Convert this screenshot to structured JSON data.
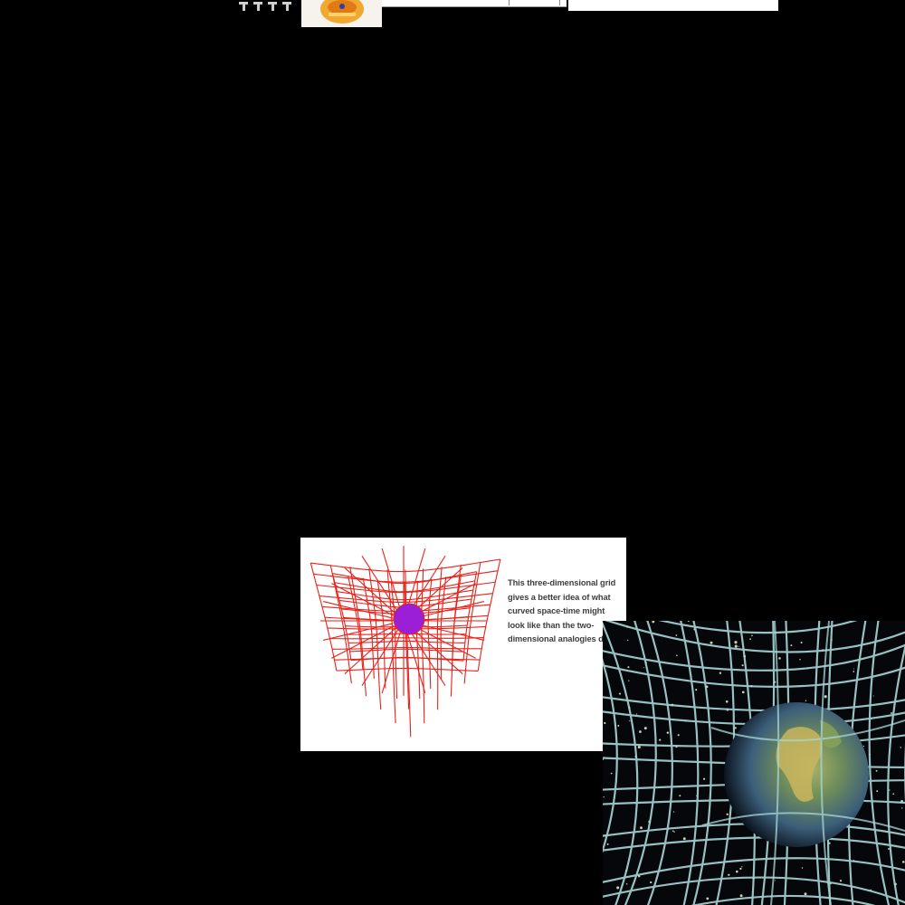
{
  "top": {
    "icon_names": [
      "toolbar-glyph-icon",
      "toolbar-glyph-icon",
      "toolbar-glyph-icon",
      "toolbar-glyph-icon"
    ],
    "thumbnail_icon": "orange-crown-icon"
  },
  "figure": {
    "grid_icon": "curved-spacetime-grid-icon",
    "caption": "This three-dimensional grid\ngives a better idea of what\ncurved space-time might\nlook like than the two-\ndimensional  analogies do.",
    "colors": {
      "grid": "#e8221a",
      "mass": "#9b1fd6",
      "caption": "#3e3e3e"
    }
  },
  "earth_image": {
    "icon": "earth-in-warped-spacetime-icon",
    "colors": {
      "grid": "#a9d6d6",
      "space": "#05070a"
    }
  }
}
